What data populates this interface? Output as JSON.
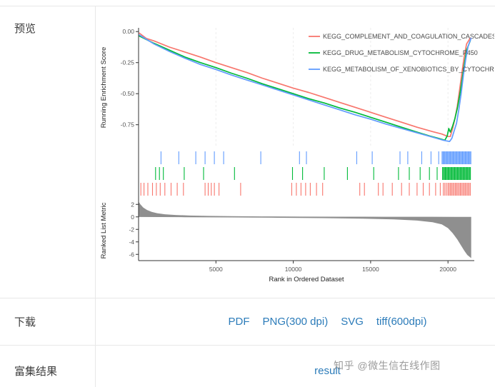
{
  "colors": {
    "link": "#2b7bb9",
    "label_text": "#3d3d3d",
    "border": "#e8e8e8",
    "watermark": "#9b9b9b"
  },
  "sections": {
    "preview": {
      "label": "预览"
    },
    "download": {
      "label": "下载",
      "links": [
        "PDF",
        "PNG(300 dpi)",
        "SVG",
        "tiff(600dpi)"
      ]
    },
    "result": {
      "label": "富集结果",
      "link": "result"
    }
  },
  "watermark": "知乎 @微生信在线作图",
  "chart_data": {
    "type": "line",
    "title": "",
    "xlabel": "Rank in Ordered Dataset",
    "xlim": [
      0,
      21700
    ],
    "x_ticks": [
      5000,
      10000,
      15000,
      20000
    ],
    "legend": {
      "position": "top_right"
    },
    "top_panel": {
      "ylabel": "Running Enrichment Score",
      "ylim": [
        -0.93,
        0.03
      ],
      "yticks": [
        "0.00",
        "-0.25",
        "-0.50",
        "-0.75"
      ]
    },
    "bottom_panel": {
      "ylabel": "Ranked List Metric",
      "ylim": [
        -7,
        2.6
      ],
      "yticks": [
        "2",
        "0",
        "-2",
        "-4",
        "-6"
      ]
    },
    "series": [
      {
        "name": "KEGG_COMPLEMENT_AND_COAGULATION_CASCADES",
        "color": "#F8766D",
        "es_points": [
          [
            30,
            -0.01
          ],
          [
            500,
            -0.055
          ],
          [
            1000,
            -0.075
          ],
          [
            2000,
            -0.125
          ],
          [
            3000,
            -0.165
          ],
          [
            4000,
            -0.205
          ],
          [
            5000,
            -0.25
          ],
          [
            6000,
            -0.29
          ],
          [
            7000,
            -0.33
          ],
          [
            8000,
            -0.375
          ],
          [
            9000,
            -0.415
          ],
          [
            10000,
            -0.455
          ],
          [
            11000,
            -0.49
          ],
          [
            12000,
            -0.53
          ],
          [
            13000,
            -0.57
          ],
          [
            14000,
            -0.61
          ],
          [
            15000,
            -0.65
          ],
          [
            16000,
            -0.69
          ],
          [
            17000,
            -0.73
          ],
          [
            18000,
            -0.77
          ],
          [
            19000,
            -0.805
          ],
          [
            19600,
            -0.825
          ],
          [
            20000,
            -0.845
          ],
          [
            20150,
            -0.845
          ],
          [
            20300,
            -0.78
          ],
          [
            20450,
            -0.7
          ],
          [
            20600,
            -0.6
          ],
          [
            20750,
            -0.47
          ],
          [
            20900,
            -0.33
          ],
          [
            21050,
            -0.2
          ],
          [
            21200,
            -0.1
          ],
          [
            21450,
            -0.05
          ]
        ],
        "gene_ranks": [
          150,
          350,
          600,
          900,
          1150,
          1400,
          1700,
          2100,
          2500,
          2900,
          4300,
          4500,
          4700,
          4900,
          5200,
          6600,
          9900,
          10200,
          10500,
          10800,
          11100,
          11500,
          11900,
          14300,
          14600,
          15500,
          15800,
          16400,
          17000,
          17500,
          18000,
          18400,
          18800,
          19200,
          19500,
          19700,
          19800,
          19900,
          20000,
          20080,
          20160,
          20240,
          20320,
          20400,
          20480,
          20560,
          20640,
          20720,
          20800,
          20880,
          20960,
          21040,
          21120,
          21200,
          21280,
          21360,
          21440
        ]
      },
      {
        "name": "KEGG_DRUG_METABOLISM_CYTOCHROME_P450",
        "color": "#00BA38",
        "es_points": [
          [
            30,
            -0.035
          ],
          [
            1000,
            -0.095
          ],
          [
            2000,
            -0.15
          ],
          [
            3000,
            -0.205
          ],
          [
            4000,
            -0.25
          ],
          [
            5000,
            -0.29
          ],
          [
            6000,
            -0.335
          ],
          [
            7000,
            -0.375
          ],
          [
            8000,
            -0.42
          ],
          [
            9000,
            -0.46
          ],
          [
            10000,
            -0.5
          ],
          [
            11000,
            -0.54
          ],
          [
            12000,
            -0.575
          ],
          [
            13000,
            -0.615
          ],
          [
            14000,
            -0.65
          ],
          [
            15000,
            -0.69
          ],
          [
            16000,
            -0.73
          ],
          [
            17000,
            -0.77
          ],
          [
            18000,
            -0.81
          ],
          [
            18800,
            -0.84
          ],
          [
            19400,
            -0.86
          ],
          [
            19800,
            -0.875
          ],
          [
            19950,
            -0.84
          ],
          [
            20050,
            -0.78
          ],
          [
            20150,
            -0.81
          ],
          [
            20300,
            -0.76
          ],
          [
            20450,
            -0.7
          ],
          [
            20600,
            -0.62
          ],
          [
            20750,
            -0.52
          ],
          [
            20900,
            -0.4
          ],
          [
            21050,
            -0.27
          ],
          [
            21200,
            -0.15
          ],
          [
            21450,
            -0.07
          ]
        ],
        "gene_ranks": [
          1100,
          1350,
          1600,
          2950,
          4200,
          6200,
          9950,
          10600,
          12000,
          13500,
          15200,
          16800,
          17500,
          18200,
          18800,
          19300,
          19650,
          19710,
          19770,
          19830,
          19890,
          19950,
          20010,
          20070,
          20130,
          20190,
          20250,
          20310,
          20370,
          20430,
          20490,
          20550,
          20610,
          20670,
          20730,
          20790,
          20850,
          20910,
          20970,
          21030,
          21090,
          21150,
          21210,
          21270,
          21330,
          21390,
          21450
        ]
      },
      {
        "name": "KEGG_METABOLISM_OF_XENOBIOTICS_BY_CYTOCHR",
        "color": "#619CFF",
        "es_points": [
          [
            30,
            -0.025
          ],
          [
            1000,
            -0.1
          ],
          [
            2000,
            -0.16
          ],
          [
            3000,
            -0.215
          ],
          [
            4000,
            -0.265
          ],
          [
            5000,
            -0.305
          ],
          [
            6000,
            -0.35
          ],
          [
            7000,
            -0.39
          ],
          [
            8000,
            -0.43
          ],
          [
            9000,
            -0.47
          ],
          [
            10000,
            -0.51
          ],
          [
            11000,
            -0.55
          ],
          [
            12000,
            -0.59
          ],
          [
            13000,
            -0.63
          ],
          [
            14000,
            -0.67
          ],
          [
            15000,
            -0.705
          ],
          [
            16000,
            -0.745
          ],
          [
            17000,
            -0.78
          ],
          [
            18000,
            -0.815
          ],
          [
            19000,
            -0.85
          ],
          [
            19700,
            -0.875
          ],
          [
            20100,
            -0.885
          ],
          [
            20250,
            -0.86
          ],
          [
            20400,
            -0.8
          ],
          [
            20550,
            -0.74
          ],
          [
            20700,
            -0.63
          ],
          [
            20850,
            -0.5
          ],
          [
            21000,
            -0.35
          ],
          [
            21150,
            -0.22
          ],
          [
            21300,
            -0.12
          ],
          [
            21500,
            -0.05
          ]
        ],
        "gene_ranks": [
          1450,
          2600,
          3700,
          4300,
          4900,
          5500,
          7900,
          10400,
          10850,
          14100,
          15100,
          16900,
          17400,
          18300,
          18900,
          19400,
          19620,
          19680,
          19740,
          19800,
          19860,
          19920,
          19980,
          20040,
          20100,
          20160,
          20220,
          20280,
          20340,
          20400,
          20460,
          20520,
          20580,
          20640,
          20700,
          20760,
          20820,
          20880,
          20940,
          21000,
          21060,
          21120,
          21180,
          21240,
          21300,
          21360,
          21420,
          21480
        ]
      }
    ],
    "ranked_metric": {
      "color": "#8f8f8f",
      "upper": [
        [
          0,
          2.45
        ],
        [
          120,
          2.0
        ],
        [
          300,
          1.5
        ],
        [
          550,
          1.1
        ],
        [
          850,
          0.8
        ],
        [
          1200,
          0.58
        ],
        [
          1700,
          0.42
        ],
        [
          2400,
          0.3
        ],
        [
          3300,
          0.22
        ],
        [
          4500,
          0.16
        ],
        [
          6000,
          0.11
        ],
        [
          8000,
          0.07
        ],
        [
          10500,
          0.05
        ],
        [
          13000,
          0.03
        ],
        [
          16000,
          0.02
        ],
        [
          19000,
          0.01
        ],
        [
          21500,
          0.0
        ]
      ],
      "lower": [
        [
          0,
          -0.02
        ],
        [
          3000,
          -0.05
        ],
        [
          6000,
          -0.09
        ],
        [
          9000,
          -0.14
        ],
        [
          12000,
          -0.2
        ],
        [
          14500,
          -0.28
        ],
        [
          16500,
          -0.4
        ],
        [
          18000,
          -0.58
        ],
        [
          19000,
          -0.85
        ],
        [
          19600,
          -1.2
        ],
        [
          20000,
          -1.8
        ],
        [
          20300,
          -2.6
        ],
        [
          20600,
          -3.6
        ],
        [
          20850,
          -4.6
        ],
        [
          21050,
          -5.4
        ],
        [
          21250,
          -6.1
        ],
        [
          21500,
          -6.6
        ]
      ]
    }
  }
}
